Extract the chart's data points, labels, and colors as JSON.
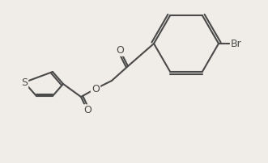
{
  "bg_color": "#f0ede8",
  "line_color": "#4a4a4a",
  "line_width": 1.5,
  "font_size": 9,
  "atoms": {
    "S": {
      "label": "S",
      "color": "#4a4a4a"
    },
    "O": {
      "label": "O",
      "color": "#4a4a4a"
    },
    "Br": {
      "label": "Br",
      "color": "#4a4a4a"
    }
  }
}
